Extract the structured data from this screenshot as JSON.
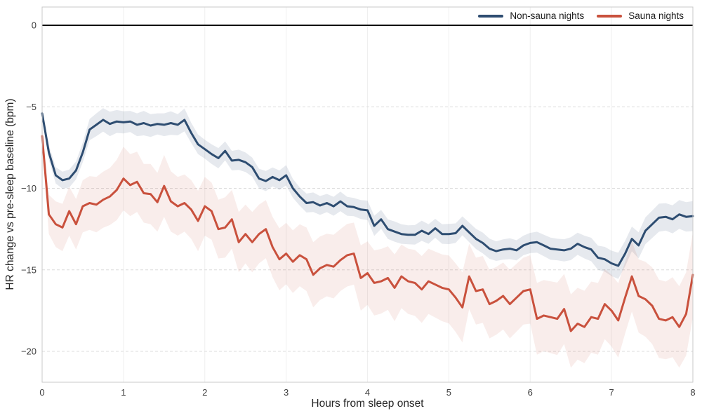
{
  "figure": {
    "background": "#ffffff",
    "plot_border_color": "#c9c9c9",
    "hgrid_color": "#dcdcdc",
    "vgrid_color": "#efefef",
    "zero_line_color": "#000000",
    "tick_label_color": "#3c3c3c",
    "axis_label_color": "#262626"
  },
  "chart_data": {
    "type": "line",
    "title": "",
    "xlabel": "Hours from sleep onset",
    "ylabel": "HR change vs pre-sleep baseline (bpm)",
    "xlim": [
      0,
      8
    ],
    "ylim": [
      -21.89,
      1.12
    ],
    "grid": "horizontal-dashed, vertical-faint",
    "legend_position": "top-right-inside",
    "zero_reference_line": true,
    "xticks": [
      {
        "value": 0,
        "label": "0"
      },
      {
        "value": 1,
        "label": "1"
      },
      {
        "value": 2,
        "label": "2"
      },
      {
        "value": 3,
        "label": "3"
      },
      {
        "value": 4,
        "label": "4"
      },
      {
        "value": 5,
        "label": "5"
      },
      {
        "value": 6,
        "label": "6"
      },
      {
        "value": 7,
        "label": "7"
      },
      {
        "value": 8,
        "label": "8"
      }
    ],
    "yticks": [
      {
        "value": 0,
        "label": "0"
      },
      {
        "value": -5,
        "label": "−5"
      },
      {
        "value": -10,
        "label": "−10"
      },
      {
        "value": -15,
        "label": "−15"
      },
      {
        "value": -20,
        "label": "−20"
      }
    ],
    "x": [
      0,
      0.083,
      0.167,
      0.25,
      0.333,
      0.417,
      0.5,
      0.583,
      0.667,
      0.75,
      0.833,
      0.917,
      1,
      1.083,
      1.167,
      1.25,
      1.333,
      1.417,
      1.5,
      1.583,
      1.667,
      1.75,
      1.833,
      1.917,
      2,
      2.083,
      2.167,
      2.25,
      2.333,
      2.417,
      2.5,
      2.583,
      2.667,
      2.75,
      2.833,
      2.917,
      3,
      3.083,
      3.167,
      3.25,
      3.333,
      3.417,
      3.5,
      3.583,
      3.667,
      3.75,
      3.833,
      3.917,
      4,
      4.083,
      4.167,
      4.25,
      4.333,
      4.417,
      4.5,
      4.583,
      4.667,
      4.75,
      4.833,
      4.917,
      5,
      5.083,
      5.167,
      5.25,
      5.333,
      5.417,
      5.5,
      5.583,
      5.667,
      5.75,
      5.833,
      5.917,
      6,
      6.083,
      6.167,
      6.25,
      6.333,
      6.417,
      6.5,
      6.583,
      6.667,
      6.75,
      6.833,
      6.917,
      7,
      7.083,
      7.167,
      7.25,
      7.333,
      7.417,
      7.5,
      7.583,
      7.667,
      7.75,
      7.833,
      7.917,
      8
    ],
    "series": [
      {
        "name": "Non-sauna nights",
        "color": "#2e4d71",
        "band_opacity": 0.12,
        "line_width": 3,
        "values": [
          -5.4,
          -7.8,
          -9.2,
          -9.5,
          -9.4,
          -8.9,
          -7.8,
          -6.4,
          -6.1,
          -5.8,
          -6.05,
          -5.9,
          -5.95,
          -5.9,
          -6.1,
          -6.0,
          -6.15,
          -6.05,
          -6.1,
          -6.0,
          -6.1,
          -5.8,
          -6.6,
          -7.3,
          -7.6,
          -7.9,
          -8.15,
          -7.7,
          -8.3,
          -8.25,
          -8.4,
          -8.7,
          -9.4,
          -9.55,
          -9.3,
          -9.5,
          -9.2,
          -10.0,
          -10.5,
          -10.9,
          -10.85,
          -11.05,
          -10.9,
          -11.1,
          -10.8,
          -11.1,
          -11.15,
          -11.3,
          -11.35,
          -12.3,
          -11.9,
          -12.5,
          -12.65,
          -12.8,
          -12.85,
          -12.85,
          -12.6,
          -12.8,
          -12.45,
          -12.8,
          -12.8,
          -12.75,
          -12.3,
          -12.7,
          -13.1,
          -13.35,
          -13.7,
          -13.85,
          -13.75,
          -13.7,
          -13.8,
          -13.5,
          -13.35,
          -13.3,
          -13.5,
          -13.7,
          -13.75,
          -13.8,
          -13.7,
          -13.4,
          -13.6,
          -13.75,
          -14.25,
          -14.35,
          -14.6,
          -14.75,
          -14.0,
          -13.1,
          -13.5,
          -12.6,
          -12.2,
          -11.8,
          -11.75,
          -11.9,
          -11.6,
          -11.75,
          -11.7
        ],
        "band_halfwidth": [
          0.3,
          0.45,
          0.5,
          0.52,
          0.55,
          0.55,
          0.6,
          0.65,
          0.7,
          0.72,
          0.75,
          0.7,
          0.68,
          0.65,
          0.7,
          0.75,
          0.7,
          0.65,
          0.7,
          0.72,
          0.65,
          0.7,
          0.62,
          0.6,
          0.58,
          0.6,
          0.62,
          0.58,
          0.6,
          0.62,
          0.6,
          0.58,
          0.6,
          0.62,
          0.58,
          0.6,
          0.62,
          0.58,
          0.56,
          0.58,
          0.6,
          0.58,
          0.56,
          0.58,
          0.6,
          0.58,
          0.56,
          0.58,
          0.6,
          0.62,
          0.58,
          0.6,
          0.62,
          0.6,
          0.58,
          0.6,
          0.62,
          0.6,
          0.58,
          0.6,
          0.62,
          0.6,
          0.58,
          0.6,
          0.62,
          0.64,
          0.62,
          0.6,
          0.62,
          0.64,
          0.62,
          0.6,
          0.62,
          0.64,
          0.66,
          0.68,
          0.66,
          0.68,
          0.7,
          0.68,
          0.7,
          0.72,
          0.74,
          0.76,
          0.78,
          0.8,
          0.78,
          0.76,
          0.8,
          0.82,
          0.84,
          0.86,
          0.84,
          0.86,
          0.88,
          0.9,
          0.92
        ]
      },
      {
        "name": "Sauna nights",
        "color": "#c9513d",
        "band_opacity": 0.1,
        "line_width": 3,
        "values": [
          -6.8,
          -11.6,
          -12.2,
          -12.4,
          -11.4,
          -12.2,
          -11.1,
          -10.9,
          -11.0,
          -10.7,
          -10.5,
          -10.1,
          -9.4,
          -9.8,
          -9.6,
          -10.3,
          -10.35,
          -10.85,
          -9.85,
          -10.8,
          -11.1,
          -10.9,
          -11.3,
          -12.0,
          -11.1,
          -11.4,
          -12.5,
          -12.4,
          -11.9,
          -13.3,
          -12.8,
          -13.3,
          -12.8,
          -12.5,
          -13.6,
          -14.35,
          -14.0,
          -14.5,
          -14.1,
          -14.35,
          -15.3,
          -14.9,
          -14.7,
          -14.8,
          -14.4,
          -14.1,
          -14.0,
          -15.5,
          -15.2,
          -15.8,
          -15.7,
          -15.5,
          -16.1,
          -15.4,
          -15.7,
          -15.8,
          -16.2,
          -15.7,
          -15.9,
          -16.1,
          -16.2,
          -16.7,
          -17.3,
          -15.4,
          -16.3,
          -16.2,
          -17.1,
          -16.9,
          -16.6,
          -17.1,
          -16.7,
          -16.3,
          -16.2,
          -18.0,
          -17.8,
          -17.9,
          -18.0,
          -17.4,
          -18.75,
          -18.3,
          -18.5,
          -17.9,
          -18.0,
          -17.1,
          -17.5,
          -18.1,
          -16.7,
          -15.4,
          -16.6,
          -16.8,
          -17.2,
          -18.0,
          -18.1,
          -17.9,
          -18.5,
          -17.7,
          -15.3
        ],
        "band_halfwidth": [
          0.6,
          1.2,
          1.4,
          1.45,
          1.5,
          1.55,
          1.6,
          1.65,
          1.7,
          1.72,
          1.75,
          1.85,
          1.95,
          1.9,
          1.85,
          1.8,
          1.85,
          1.8,
          1.9,
          1.85,
          1.8,
          1.75,
          1.8,
          1.85,
          1.8,
          1.75,
          1.8,
          1.85,
          1.8,
          1.85,
          1.8,
          1.85,
          1.8,
          1.78,
          1.85,
          1.9,
          1.88,
          1.92,
          1.9,
          1.95,
          2.0,
          1.95,
          1.92,
          1.95,
          1.9,
          1.92,
          1.9,
          2.0,
          1.95,
          2.0,
          1.98,
          1.95,
          2.05,
          1.95,
          2.0,
          2.02,
          2.05,
          2.0,
          2.02,
          2.05,
          2.08,
          2.1,
          2.15,
          2.0,
          2.05,
          2.05,
          2.1,
          2.08,
          2.05,
          2.1,
          2.08,
          2.05,
          2.1,
          2.2,
          2.18,
          2.2,
          2.22,
          2.15,
          2.25,
          2.2,
          2.22,
          2.18,
          2.2,
          2.15,
          2.2,
          2.28,
          2.2,
          2.15,
          2.25,
          2.3,
          2.35,
          2.4,
          2.38,
          2.45,
          2.5,
          2.55,
          2.6
        ]
      }
    ]
  },
  "legend": {
    "items": [
      {
        "label": "Non-sauna nights",
        "color": "#2e4d71"
      },
      {
        "label": "Sauna nights",
        "color": "#c9513d"
      }
    ]
  }
}
